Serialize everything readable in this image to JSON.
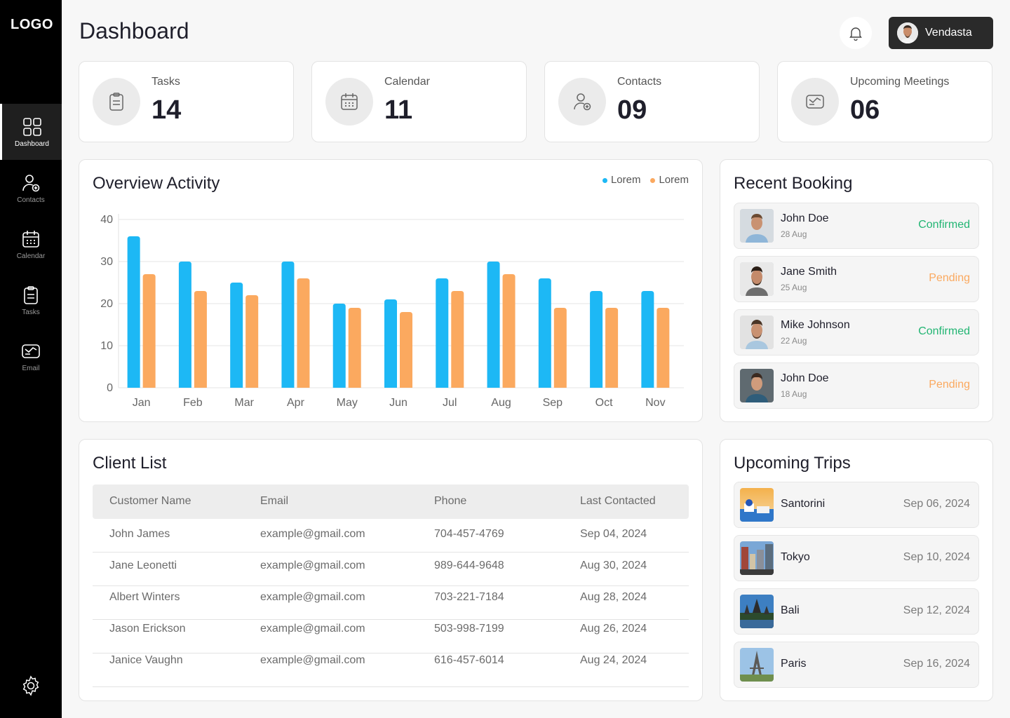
{
  "sidebar": {
    "logo": "LOGO",
    "items": [
      {
        "label": "Dashboard",
        "icon": "dashboard-icon",
        "active": true
      },
      {
        "label": "Contacts",
        "icon": "contacts-icon",
        "active": false
      },
      {
        "label": "Calendar",
        "icon": "calendar-icon",
        "active": false
      },
      {
        "label": "Tasks",
        "icon": "tasks-icon",
        "active": false
      },
      {
        "label": "Email",
        "icon": "email-icon",
        "active": false
      }
    ],
    "settings_icon": "gear-icon"
  },
  "header": {
    "title": "Dashboard",
    "user_name": "Vendasta"
  },
  "stats": [
    {
      "label": "Tasks",
      "value": "14",
      "icon": "clipboard-icon"
    },
    {
      "label": "Calendar",
      "value": "11",
      "icon": "calendar-icon"
    },
    {
      "label": "Contacts",
      "value": "09",
      "icon": "add-user-icon"
    },
    {
      "label": "Upcoming Meetings",
      "value": "06",
      "icon": "mail-icon"
    }
  ],
  "overview": {
    "title": "Overview Activity",
    "legend": [
      "Lorem",
      "Lorem"
    ]
  },
  "chart_data": {
    "type": "bar",
    "categories": [
      "Jan",
      "Feb",
      "Mar",
      "Apr",
      "May",
      "Jun",
      "Jul",
      "Aug",
      "Sep",
      "Oct",
      "Nov"
    ],
    "series": [
      {
        "name": "Lorem",
        "color": "#1db8f5",
        "values": [
          36,
          30,
          25,
          30,
          20,
          21,
          26,
          30,
          26,
          23,
          23
        ]
      },
      {
        "name": "Lorem",
        "color": "#fba95f",
        "values": [
          27,
          23,
          22,
          26,
          19,
          18,
          23,
          27,
          19,
          19,
          19
        ]
      }
    ],
    "yticks": [
      "0",
      "10",
      "20",
      "30",
      "40"
    ],
    "ylim": [
      0,
      40
    ],
    "grid": true,
    "legend_position": "top-right"
  },
  "bookings": {
    "title": "Recent Booking",
    "items": [
      {
        "name": "John Doe",
        "date": "28 Aug",
        "status": "Confirmed",
        "status_color": "#22b573"
      },
      {
        "name": "Jane Smith",
        "date": "25 Aug",
        "status": "Pending",
        "status_color": "#fba95f"
      },
      {
        "name": "Mike Johnson",
        "date": "22 Aug",
        "status": "Confirmed",
        "status_color": "#22b573"
      },
      {
        "name": "John Doe",
        "date": "18 Aug",
        "status": "Pending",
        "status_color": "#fba95f"
      }
    ]
  },
  "clients": {
    "title": "Client List",
    "columns": [
      "Customer Name",
      "Email",
      "Phone",
      "Last Contacted"
    ],
    "rows": [
      [
        "John James",
        "example@gmail.com",
        "704-457-4769",
        "Sep 04, 2024"
      ],
      [
        "Jane Leonetti",
        "example@gmail.com",
        "989-644-9648",
        "Aug 30, 2024"
      ],
      [
        "Albert Winters",
        "example@gmail.com",
        "703-221-7184",
        "Aug 28, 2024"
      ],
      [
        "Jason Erickson",
        "example@gmail.com",
        "503-998-7199",
        "Aug 26, 2024"
      ],
      [
        "Janice Vaughn",
        "example@gmail.com",
        "616-457-6014",
        "Aug 24, 2024"
      ]
    ]
  },
  "trips": {
    "title": "Upcoming Trips",
    "items": [
      {
        "name": "Santorini",
        "date": "Sep 06, 2024"
      },
      {
        "name": "Tokyo",
        "date": "Sep 10, 2024"
      },
      {
        "name": "Bali",
        "date": "Sep 12, 2024"
      },
      {
        "name": "Paris",
        "date": "Sep 16, 2024"
      }
    ]
  }
}
